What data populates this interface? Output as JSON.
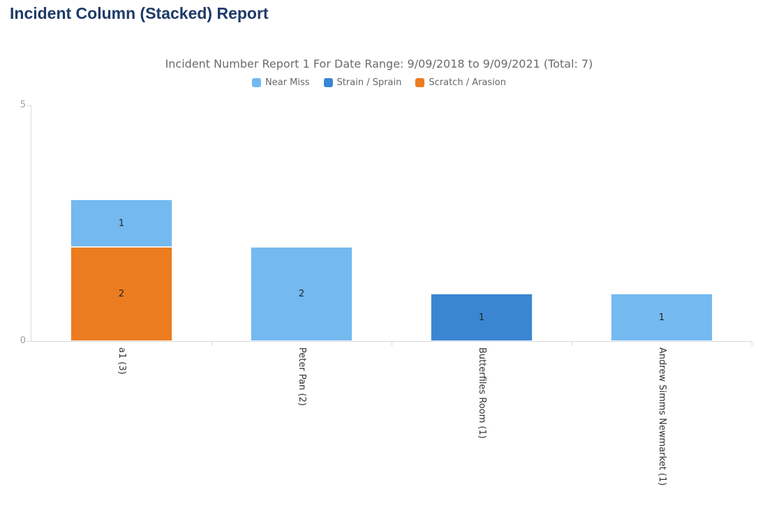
{
  "page": {
    "title": "Incident Column (Stacked) Report",
    "title_color": "#1E3A68"
  },
  "chart_data": {
    "type": "bar",
    "stacked": true,
    "title": "Incident Number Report 1 For Date Range: 9/09/2018 to 9/09/2021 (Total: 7)",
    "title_color": "#6B6B6B",
    "total": 7,
    "categories": [
      "a1 (3)",
      "Peter Pan (2)",
      "Butterfiles Room (1)",
      "Andrew Simms Newmarket (1)"
    ],
    "series": [
      {
        "name": "Near Miss",
        "color": "#74B9F0",
        "values": [
          1,
          2,
          0,
          1
        ]
      },
      {
        "name": "Strain / Sprain",
        "color": "#3A86D2",
        "values": [
          0,
          0,
          1,
          0
        ]
      },
      {
        "name": "Scratch / Arasion",
        "color": "#EC7C20",
        "values": [
          2,
          0,
          0,
          0
        ]
      }
    ],
    "stack_order_bottom_to_top": [
      "Scratch / Arasion",
      "Strain / Sprain",
      "Near Miss"
    ],
    "ylim": [
      0,
      5
    ],
    "yticks": [
      0,
      5
    ],
    "grid": false,
    "legend_position": "top",
    "legend_text_color": "#666666",
    "axis_line_color": "#D9D9DC",
    "axis_tick_label_color": "#98A1A9",
    "category_label_color": "#333333",
    "data_label_color": "#1F2327"
  }
}
